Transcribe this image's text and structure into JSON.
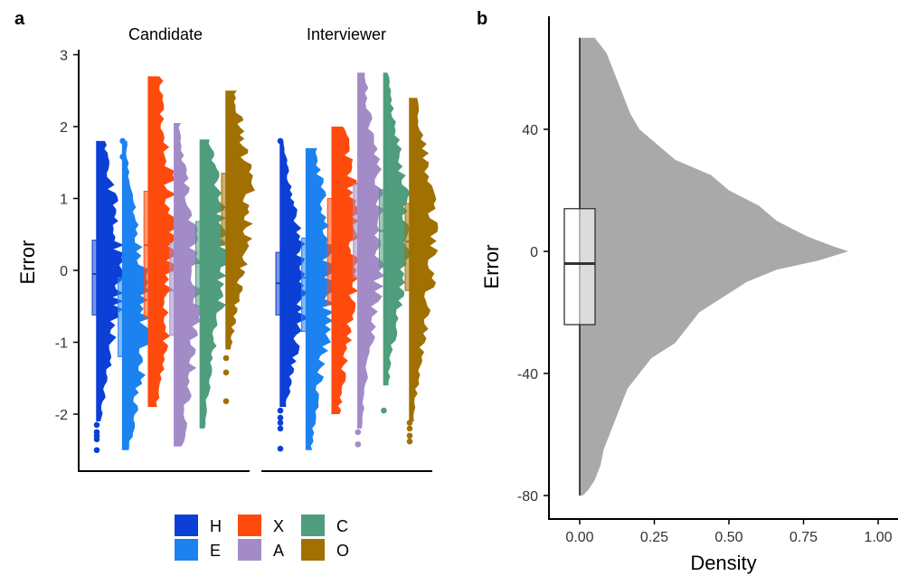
{
  "panel_a": {
    "panel_label": "a",
    "facets": [
      "Candidate",
      "Interviewer"
    ],
    "ylabel": "Error",
    "ylim": [
      -2.8,
      3.0
    ],
    "yticks": [
      3,
      2,
      1,
      0,
      -1,
      -2
    ],
    "ytick_labels": [
      "3",
      "2",
      "1",
      "0",
      "-1",
      "-2"
    ],
    "legend": {
      "items": [
        {
          "label": "H",
          "color": "#0b3fd6"
        },
        {
          "label": "E",
          "color": "#1c82f0"
        },
        {
          "label": "X",
          "color": "#ff4a0e"
        },
        {
          "label": "A",
          "color": "#a38bc8"
        },
        {
          "label": "C",
          "color": "#4f9d7d"
        },
        {
          "label": "O",
          "color": "#a07000"
        }
      ]
    }
  },
  "panel_b": {
    "panel_label": "b",
    "ylabel": "Error",
    "xlabel": "Density",
    "xticks": [
      0.0,
      0.25,
      0.5,
      0.75,
      1.0
    ],
    "xtick_labels": [
      "0.00",
      "0.25",
      "0.50",
      "0.75",
      "1.00"
    ],
    "yticks": [
      40,
      0,
      -40,
      -80
    ],
    "ytick_labels": [
      "40",
      "0",
      "-40",
      "-80"
    ],
    "xlim": [
      -0.1,
      1.05
    ],
    "ylim": [
      -88,
      70
    ]
  },
  "chart_data": [
    {
      "type": "violin-box",
      "panel": "a",
      "ylabel": "Error",
      "facets": [
        "Candidate",
        "Interviewer"
      ],
      "categories": [
        "H",
        "E",
        "X",
        "A",
        "C",
        "O"
      ],
      "series": [
        {
          "facet": "Candidate",
          "name": "H",
          "q1": -0.62,
          "median": -0.05,
          "q3": 0.42,
          "min": -2.1,
          "max": 1.8,
          "peak": 0.05,
          "outliers": [
            -2.15,
            -2.25,
            -2.3,
            -2.35,
            -2.5
          ]
        },
        {
          "facet": "Candidate",
          "name": "E",
          "q1": -1.2,
          "median": -0.55,
          "q3": -0.1,
          "min": -2.5,
          "max": 1.8,
          "peak": -0.6,
          "outliers": [
            1.8,
            1.58
          ]
        },
        {
          "facet": "Candidate",
          "name": "X",
          "q1": -0.65,
          "median": 0.35,
          "q3": 1.1,
          "min": -1.9,
          "max": 2.7,
          "peak": 0.5,
          "outliers": []
        },
        {
          "facet": "Candidate",
          "name": "A",
          "q1": -0.9,
          "median": -0.28,
          "q3": 0.38,
          "min": -2.45,
          "max": 2.05,
          "peak": -0.35,
          "outliers": []
        },
        {
          "facet": "Candidate",
          "name": "C",
          "q1": -0.5,
          "median": 0.1,
          "q3": 0.68,
          "min": -2.2,
          "max": 1.82,
          "peak": 0.15,
          "outliers": []
        },
        {
          "facet": "Candidate",
          "name": "O",
          "q1": 0.35,
          "median": 0.88,
          "q3": 1.35,
          "min": -1.1,
          "max": 2.5,
          "peak": 0.95,
          "outliers": [
            -1.22,
            -1.42,
            -1.82
          ]
        },
        {
          "facet": "Interviewer",
          "name": "H",
          "q1": -0.62,
          "median": -0.18,
          "q3": 0.25,
          "min": -1.9,
          "max": 1.8,
          "peak": -0.2,
          "outliers": [
            1.8,
            -1.95,
            -2.05,
            -2.12,
            -2.2,
            -2.48
          ]
        },
        {
          "facet": "Interviewer",
          "name": "E",
          "q1": -0.85,
          "median": -0.1,
          "q3": 0.45,
          "min": -2.5,
          "max": 1.7,
          "peak": -0.15,
          "outliers": []
        },
        {
          "facet": "Interviewer",
          "name": "X",
          "q1": -0.48,
          "median": 0.35,
          "q3": 1.0,
          "min": -2.0,
          "max": 2.0,
          "peak": 0.4,
          "outliers": []
        },
        {
          "facet": "Interviewer",
          "name": "A",
          "q1": -0.1,
          "median": 0.5,
          "q3": 1.2,
          "min": -2.2,
          "max": 2.75,
          "peak": 0.5,
          "outliers": [
            -2.25,
            -2.42
          ]
        },
        {
          "facet": "Interviewer",
          "name": "C",
          "q1": 0.05,
          "median": 0.55,
          "q3": 1.12,
          "min": -1.6,
          "max": 2.75,
          "peak": 0.6,
          "outliers": [
            -1.95
          ]
        },
        {
          "facet": "Interviewer",
          "name": "O",
          "q1": -0.28,
          "median": 0.4,
          "q3": 0.93,
          "min": -2.1,
          "max": 2.4,
          "peak": 0.4,
          "outliers": [
            -2.12,
            -2.2,
            -2.3,
            -2.38
          ]
        }
      ]
    },
    {
      "type": "area",
      "panel": "b",
      "xlabel": "Density",
      "ylabel": "Error",
      "xlim": [
        -0.1,
        1.05
      ],
      "ylim": [
        -88,
        70
      ],
      "density_profile": {
        "y": [
          70,
          65,
          60,
          55,
          50,
          45,
          40,
          35,
          30,
          25,
          20,
          15,
          10,
          5,
          2,
          0,
          -3,
          -6,
          -10,
          -15,
          -20,
          -25,
          -30,
          -35,
          -40,
          -45,
          -50,
          -55,
          -60,
          -65,
          -70,
          -75,
          -78,
          -80
        ],
        "density": [
          0.05,
          0.09,
          0.11,
          0.13,
          0.15,
          0.17,
          0.2,
          0.26,
          0.32,
          0.44,
          0.5,
          0.6,
          0.66,
          0.76,
          0.84,
          0.9,
          0.8,
          0.66,
          0.56,
          0.48,
          0.4,
          0.36,
          0.32,
          0.24,
          0.2,
          0.16,
          0.14,
          0.12,
          0.1,
          0.08,
          0.07,
          0.05,
          0.03,
          0.01
        ]
      },
      "box": {
        "q1": -24,
        "median": -4,
        "q3": 14,
        "min": -80,
        "max": 70
      }
    }
  ]
}
